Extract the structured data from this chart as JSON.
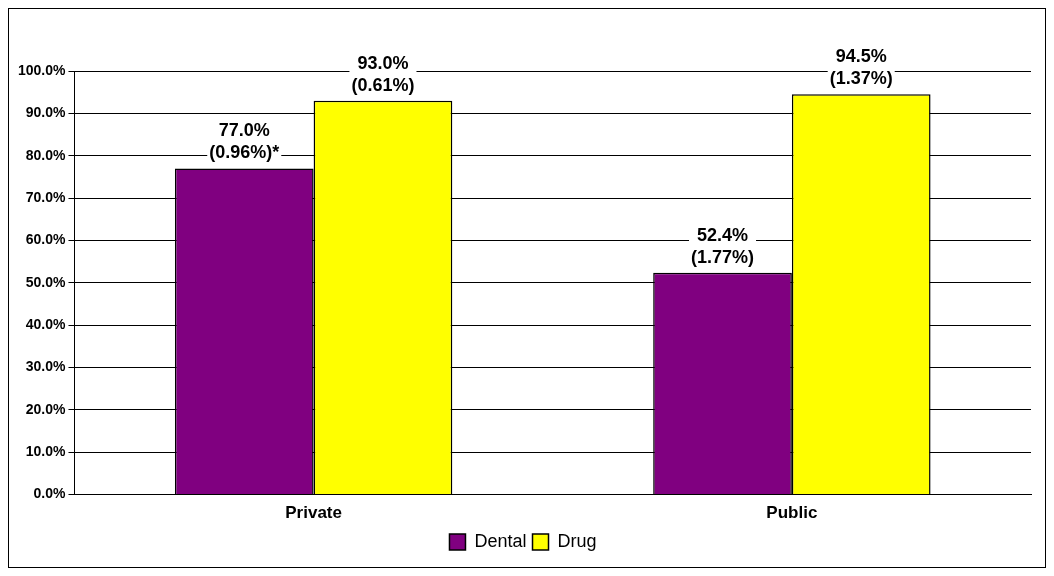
{
  "chart_data": {
    "type": "bar",
    "categories": [
      "Private",
      "Public"
    ],
    "series": [
      {
        "name": "Dental",
        "color": "#800080",
        "values": [
          77.0,
          52.4
        ],
        "value_labels": [
          "77.0%\n(0.96%)*",
          "52.4%\n(1.77%)"
        ]
      },
      {
        "name": "Drug",
        "color": "#ffff00",
        "values": [
          93.0,
          94.5
        ],
        "value_labels": [
          "93.0%\n(0.61%)",
          "94.5%\n(1.37%)"
        ]
      }
    ],
    "ylim": [
      0,
      100
    ],
    "yticks": [
      {
        "value": 0,
        "label": "0.0%"
      },
      {
        "value": 10,
        "label": "10.0%"
      },
      {
        "value": 20,
        "label": "20.0%"
      },
      {
        "value": 30,
        "label": "30.0%"
      },
      {
        "value": 40,
        "label": "40.0%"
      },
      {
        "value": 50,
        "label": "50.0%"
      },
      {
        "value": 60,
        "label": "60.0%"
      },
      {
        "value": 70,
        "label": "70.0%"
      },
      {
        "value": 80,
        "label": "80.0%"
      },
      {
        "value": 90,
        "label": "90.0%"
      },
      {
        "value": 100,
        "label": "100.0%"
      }
    ],
    "grid": "y",
    "legend": "bottom"
  }
}
